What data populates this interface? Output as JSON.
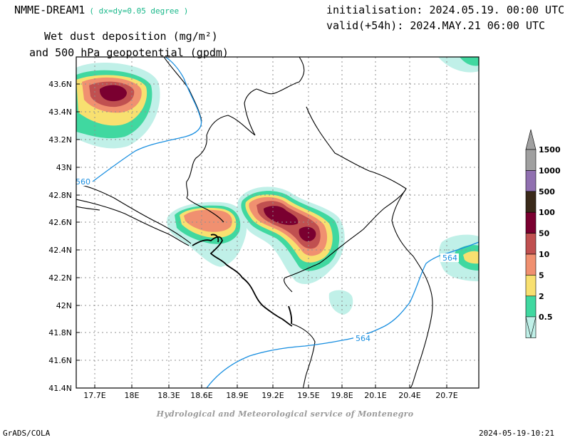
{
  "header": {
    "model_name": "NMME-DREAM1",
    "model_resolution": "( dx=dy=0.05 degree )",
    "initialisation": "initialisation: 2024.05.19. 00:00 UTC",
    "valid": "valid(+54h): 2024.MAY.21 06:00 UTC",
    "title_line1": "Wet dust deposition (mg/m²)",
    "title_line2": "and 500 hPa geopotential (gpdm)"
  },
  "map": {
    "lon_ticks": [
      "17.7E",
      "18E",
      "18.3E",
      "18.6E",
      "18.9E",
      "19.2E",
      "19.5E",
      "19.8E",
      "20.1E",
      "20.4E",
      "20.7E"
    ],
    "lat_ticks": [
      "43.6N",
      "43.4N",
      "43.2N",
      "43N",
      "42.8N",
      "42.6N",
      "42.4N",
      "42.2N",
      "42N",
      "41.8N",
      "41.6N",
      "41.4N"
    ],
    "contour_labels": [
      "560",
      "564",
      "564"
    ],
    "contour_color": "#1a8fe0"
  },
  "legend": {
    "levels": [
      "1500",
      "1000",
      "500",
      "100",
      "50",
      "10",
      "5",
      "2",
      "0.5"
    ],
    "colors": [
      "#a0a0a0",
      "#9070b0",
      "#3a2a1a",
      "#7a0030",
      "#c05050",
      "#f09070",
      "#f8e070",
      "#40d8a0",
      "#c0f0e8"
    ]
  },
  "footer": {
    "credit": "Hydrological and Meteorological service of Montenegro",
    "software": "GrADS/COLA",
    "timestamp": "2024-05-19-10:21"
  }
}
